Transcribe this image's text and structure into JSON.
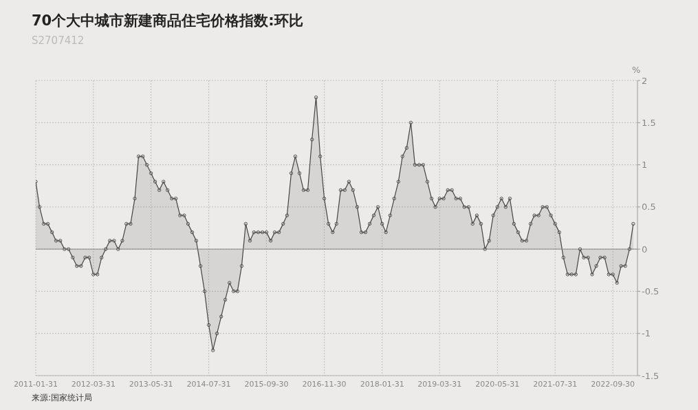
{
  "chart_data": {
    "type": "area",
    "title": "70个大中城市新建商品住宅价格指数:环比",
    "subtitle": "S2707412",
    "ylabel": "%",
    "annotations": [
      "来源:国家统计局"
    ],
    "x": [
      "2011-01-31",
      "2011-02-28",
      "2011-03-31",
      "2011-04-30",
      "2011-05-31",
      "2011-06-30",
      "2011-07-31",
      "2011-08-31",
      "2011-09-30",
      "2011-10-31",
      "2011-11-30",
      "2011-12-31",
      "2012-01-31",
      "2012-02-29",
      "2012-03-31",
      "2012-04-30",
      "2012-05-31",
      "2012-06-30",
      "2012-07-31",
      "2012-08-31",
      "2012-09-30",
      "2012-10-31",
      "2012-11-30",
      "2012-12-31",
      "2013-01-31",
      "2013-02-28",
      "2013-03-31",
      "2013-04-30",
      "2013-05-31",
      "2013-06-30",
      "2013-07-31",
      "2013-08-31",
      "2013-09-30",
      "2013-10-31",
      "2013-11-30",
      "2013-12-31",
      "2014-01-31",
      "2014-02-28",
      "2014-03-31",
      "2014-04-30",
      "2014-05-31",
      "2014-06-30",
      "2014-07-31",
      "2014-08-31",
      "2014-09-30",
      "2014-10-31",
      "2014-11-30",
      "2014-12-31",
      "2015-01-31",
      "2015-02-28",
      "2015-03-31",
      "2015-04-30",
      "2015-05-31",
      "2015-06-30",
      "2015-07-31",
      "2015-08-31",
      "2015-09-30",
      "2015-10-31",
      "2015-11-30",
      "2015-12-31",
      "2016-01-31",
      "2016-02-29",
      "2016-03-31",
      "2016-04-30",
      "2016-05-31",
      "2016-06-30",
      "2016-07-31",
      "2016-08-31",
      "2016-09-30",
      "2016-10-31",
      "2016-11-30",
      "2016-12-31",
      "2017-01-31",
      "2017-02-28",
      "2017-03-31",
      "2017-04-30",
      "2017-05-31",
      "2017-06-30",
      "2017-07-31",
      "2017-08-31",
      "2017-09-30",
      "2017-10-31",
      "2017-11-30",
      "2017-12-31",
      "2018-01-31",
      "2018-02-28",
      "2018-03-31",
      "2018-04-30",
      "2018-05-31",
      "2018-06-30",
      "2018-07-31",
      "2018-08-31",
      "2018-09-30",
      "2018-10-31",
      "2018-11-30",
      "2018-12-31",
      "2019-01-31",
      "2019-02-28",
      "2019-03-31",
      "2019-04-30",
      "2019-05-31",
      "2019-06-30",
      "2019-07-31",
      "2019-08-31",
      "2019-09-30",
      "2019-10-31",
      "2019-11-30",
      "2019-12-31",
      "2020-01-31",
      "2020-02-29",
      "2020-03-31",
      "2020-04-30",
      "2020-05-31",
      "2020-06-30",
      "2020-07-31",
      "2020-08-31",
      "2020-09-30",
      "2020-10-31",
      "2020-11-30",
      "2020-12-31",
      "2021-01-31",
      "2021-02-28",
      "2021-03-31",
      "2021-04-30",
      "2021-05-31",
      "2021-06-30",
      "2021-07-31",
      "2021-08-31",
      "2021-09-30",
      "2021-10-31",
      "2021-11-30",
      "2021-12-31",
      "2022-01-31",
      "2022-02-28",
      "2022-03-31",
      "2022-04-30",
      "2022-05-31",
      "2022-06-30",
      "2022-07-31",
      "2022-08-31",
      "2022-09-30",
      "2022-10-31",
      "2022-11-30",
      "2022-12-31",
      "2023-01-31",
      "2023-02-28"
    ],
    "series": [
      {
        "color": "#444444",
        "values": [
          0.8,
          0.5,
          0.3,
          0.3,
          0.2,
          0.1,
          0.1,
          0,
          0,
          -0.1,
          -0.2,
          -0.2,
          -0.1,
          -0.1,
          -0.3,
          -0.3,
          -0.1,
          0,
          0.1,
          0.1,
          0,
          0.1,
          0.3,
          0.3,
          0.6,
          1.1,
          1.1,
          1.0,
          0.9,
          0.8,
          0.7,
          0.8,
          0.7,
          0.6,
          0.6,
          0.4,
          0.4,
          0.3,
          0.2,
          0.1,
          -0.2,
          -0.5,
          -0.9,
          -1.2,
          -1.0,
          -0.8,
          -0.6,
          -0.4,
          -0.5,
          -0.5,
          -0.2,
          0.3,
          0.1,
          0.2,
          0.2,
          0.2,
          0.2,
          0.1,
          0.2,
          0.2,
          0.3,
          0.4,
          0.9,
          1.1,
          0.9,
          0.7,
          0.7,
          1.3,
          1.8,
          1.1,
          0.6,
          0.3,
          0.2,
          0.3,
          0.7,
          0.7,
          0.8,
          0.7,
          0.5,
          0.2,
          0.2,
          0.3,
          0.4,
          0.5,
          0.3,
          0.2,
          0.4,
          0.6,
          0.8,
          1.1,
          1.2,
          1.5,
          1.0,
          1.0,
          1.0,
          0.8,
          0.6,
          0.5,
          0.6,
          0.6,
          0.7,
          0.7,
          0.6,
          0.6,
          0.5,
          0.5,
          0.3,
          0.4,
          0.3,
          0,
          0.1,
          0.4,
          0.5,
          0.6,
          0.5,
          0.6,
          0.3,
          0.2,
          0.1,
          0.1,
          0.3,
          0.4,
          0.4,
          0.5,
          0.5,
          0.4,
          0.3,
          0.2,
          -0.1,
          -0.3,
          -0.3,
          -0.3,
          0,
          -0.1,
          -0.1,
          -0.3,
          -0.2,
          -0.1,
          -0.1,
          -0.3,
          -0.3,
          -0.4,
          -0.2,
          -0.2,
          0,
          0.3
        ]
      }
    ],
    "xlim": [
      "2011-01-31",
      "2023-03-31"
    ],
    "xticks": [
      "2011-01-31",
      "2012-03-31",
      "2013-05-31",
      "2014-07-31",
      "2015-09-30",
      "2016-11-30",
      "2018-01-31",
      "2019-03-31",
      "2020-05-31",
      "2021-07-31",
      "2022-09-30"
    ],
    "ylim": [
      -1.5,
      2
    ],
    "yticks": [
      -1.5,
      -1,
      -0.5,
      0,
      0.5,
      1,
      1.5,
      2
    ],
    "ref_lines": [
      {
        "axis": "y",
        "value": 0,
        "color": "#888888"
      }
    ],
    "grid": true,
    "marker": "circle"
  }
}
